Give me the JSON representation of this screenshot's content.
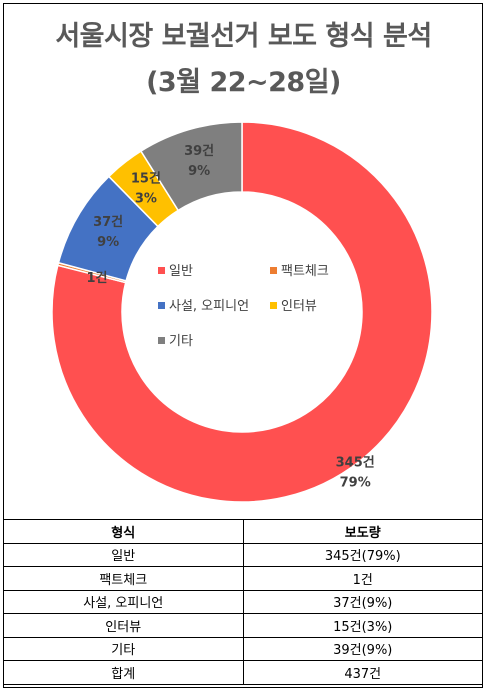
{
  "chart_data": {
    "type": "pie",
    "title": "서울시장 보궐선거 보도 형식 분석",
    "subtitle": "(3월 22~28일)",
    "categories": [
      "일반",
      "팩트체크",
      "사설, 오피니언",
      "인터뷰",
      "기타"
    ],
    "values": [
      345,
      1,
      37,
      15,
      39
    ],
    "labels": [
      {
        "count": "345건",
        "pct": "79%"
      },
      {
        "count": "1건",
        "pct": ""
      },
      {
        "count": "37건",
        "pct": "9%"
      },
      {
        "count": "15건",
        "pct": "3%"
      },
      {
        "count": "39건",
        "pct": "9%"
      }
    ],
    "colors": [
      "#ff5050",
      "#ed7d31",
      "#4472c4",
      "#ffc000",
      "#7f7f7f"
    ],
    "legend_position": "center"
  },
  "table": {
    "headers": [
      "형식",
      "보도량"
    ],
    "rows": [
      [
        "일반",
        "345건(79%)"
      ],
      [
        "팩트체크",
        "1건"
      ],
      [
        "사설, 오피니언",
        "37건(9%)"
      ],
      [
        "인터뷰",
        "15건(3%)"
      ],
      [
        "기타",
        "39건(9%)"
      ],
      [
        "합계",
        "437건"
      ]
    ]
  }
}
